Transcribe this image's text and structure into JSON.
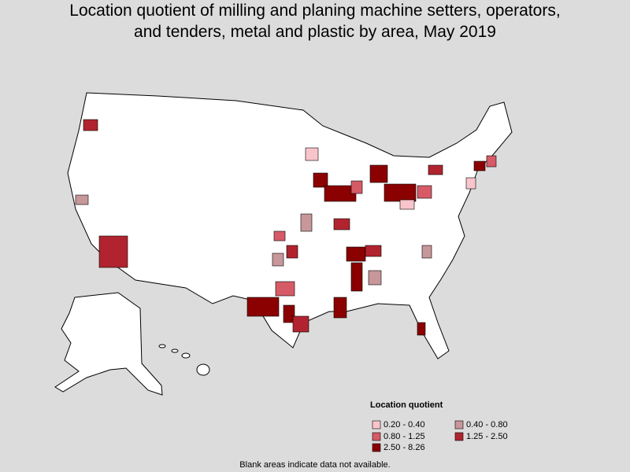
{
  "title": [
    "Location quotient of milling and planing machine setters, operators,",
    "and tenders, metal and plastic by area, May 2019"
  ],
  "legend": {
    "title": "Location quotient",
    "items": [
      {
        "label": "0.20 - 0.40",
        "color": "#f9c4cb"
      },
      {
        "label": "0.40 - 0.80",
        "color": "#c8979a"
      },
      {
        "label": "0.80 - 1.25",
        "color": "#d65b67"
      },
      {
        "label": "1.25 - 2.50",
        "color": "#b1242f"
      },
      {
        "label": "2.50 - 8.26",
        "color": "#8b0000"
      }
    ]
  },
  "footnote": "Blank areas indicate data not available."
}
